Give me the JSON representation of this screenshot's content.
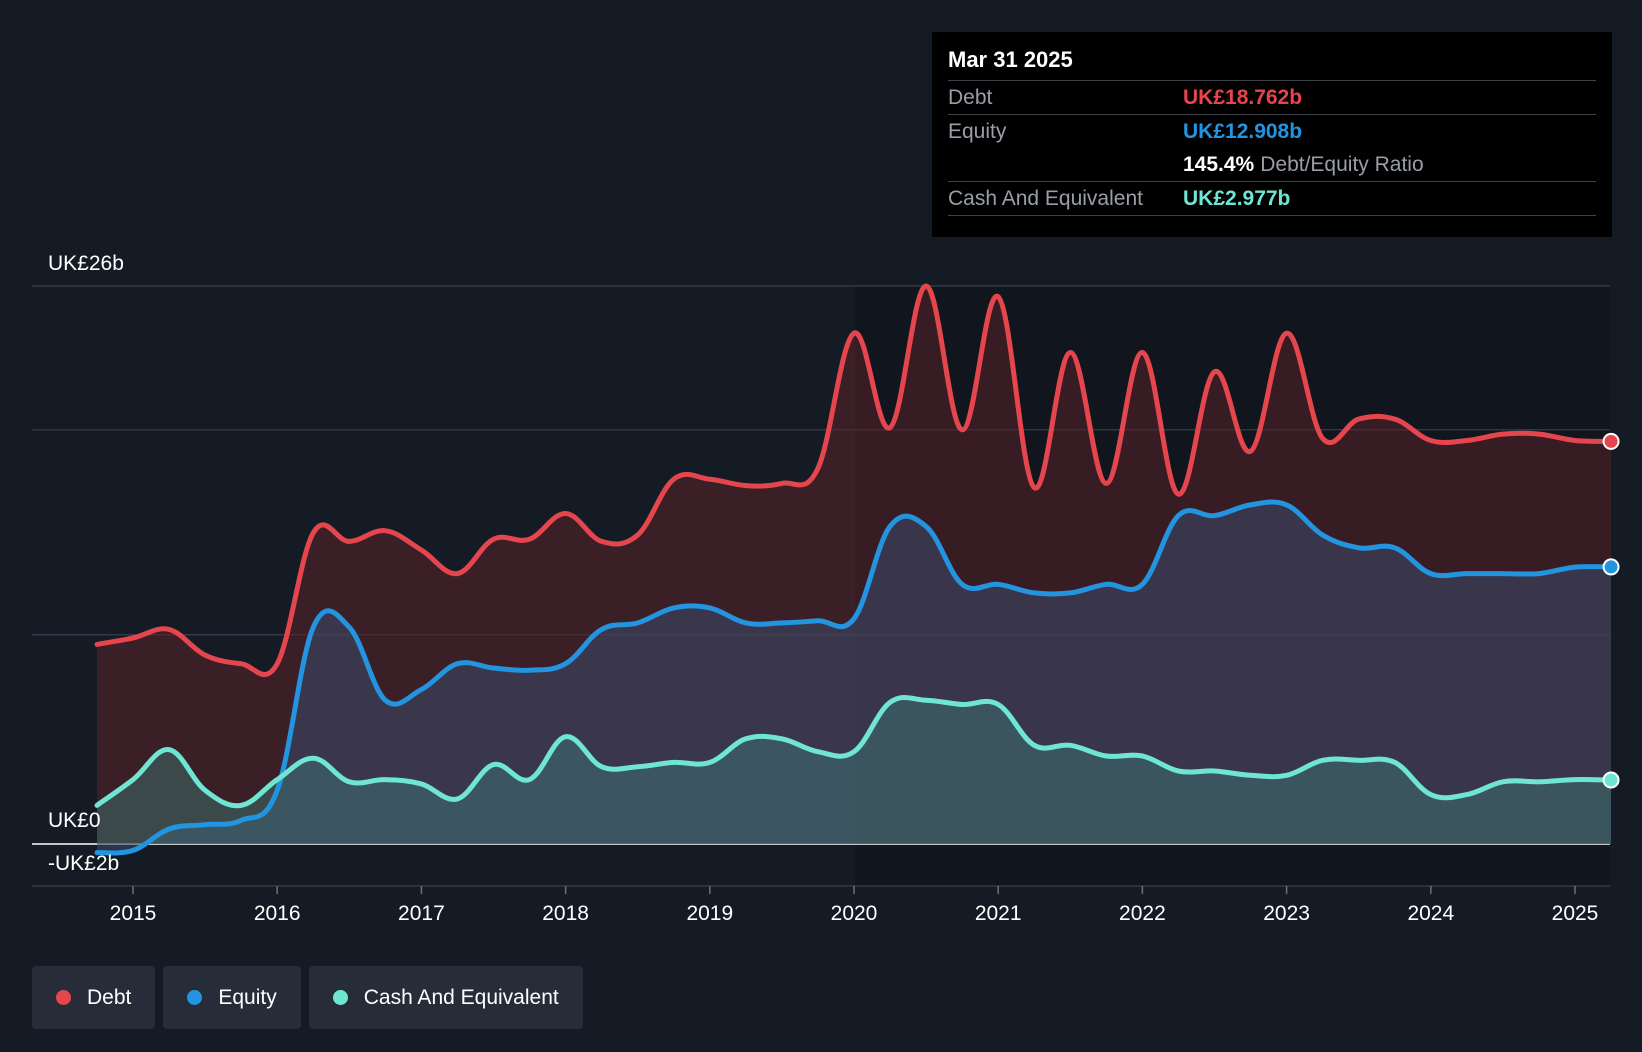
{
  "tooltip": {
    "date": "Mar 31 2025",
    "debt_label": "Debt",
    "debt_value": "UK£18.762b",
    "equity_label": "Equity",
    "equity_value": "UK£12.908b",
    "ratio_value": "145.4%",
    "ratio_label": "Debt/Equity Ratio",
    "cash_label": "Cash And Equivalent",
    "cash_value": "UK£2.977b"
  },
  "legend": [
    {
      "label": "Debt",
      "color": "#e5464d"
    },
    {
      "label": "Equity",
      "color": "#2394df"
    },
    {
      "label": "Cash And Equivalent",
      "color": "#6ee6d3"
    }
  ],
  "chart_data": {
    "type": "area",
    "title": "",
    "xlabel": "",
    "ylabel": "",
    "y_label_top": "UK£26b",
    "y_label_zero": "UK£0",
    "y_label_bottom": "-UK£2b",
    "ylim": [
      -2,
      26
    ],
    "xlim": [
      2014.74,
      2025.25
    ],
    "x_ticks": [
      "2015",
      "2016",
      "2017",
      "2018",
      "2019",
      "2020",
      "2021",
      "2022",
      "2023",
      "2024",
      "2025"
    ],
    "series": [
      {
        "name": "Debt",
        "color": "#e5464d",
        "points": [
          [
            2014.75,
            9.3
          ],
          [
            2015.0,
            9.6
          ],
          [
            2015.25,
            10.0
          ],
          [
            2015.5,
            8.8
          ],
          [
            2015.75,
            8.4
          ],
          [
            2016.0,
            8.4
          ],
          [
            2016.25,
            14.5
          ],
          [
            2016.5,
            14.1
          ],
          [
            2016.75,
            14.6
          ],
          [
            2017.0,
            13.7
          ],
          [
            2017.25,
            12.6
          ],
          [
            2017.5,
            14.2
          ],
          [
            2017.75,
            14.2
          ],
          [
            2018.0,
            15.4
          ],
          [
            2018.25,
            14.1
          ],
          [
            2018.5,
            14.4
          ],
          [
            2018.75,
            17.0
          ],
          [
            2019.0,
            17.0
          ],
          [
            2019.25,
            16.7
          ],
          [
            2019.5,
            16.8
          ],
          [
            2019.75,
            17.5
          ],
          [
            2020.0,
            23.8
          ],
          [
            2020.25,
            19.4
          ],
          [
            2020.5,
            26.0
          ],
          [
            2020.75,
            19.3
          ],
          [
            2021.0,
            25.5
          ],
          [
            2021.25,
            16.6
          ],
          [
            2021.5,
            22.9
          ],
          [
            2021.75,
            16.8
          ],
          [
            2022.0,
            22.9
          ],
          [
            2022.25,
            16.3
          ],
          [
            2022.5,
            22.0
          ],
          [
            2022.75,
            18.3
          ],
          [
            2023.0,
            23.8
          ],
          [
            2023.25,
            18.9
          ],
          [
            2023.5,
            19.8
          ],
          [
            2023.75,
            19.8
          ],
          [
            2024.0,
            18.8
          ],
          [
            2024.25,
            18.8
          ],
          [
            2024.5,
            19.1
          ],
          [
            2024.75,
            19.1
          ],
          [
            2025.0,
            18.8
          ],
          [
            2025.25,
            18.76
          ]
        ]
      },
      {
        "name": "Equity",
        "color": "#2394df",
        "points": [
          [
            2014.75,
            -0.4
          ],
          [
            2015.0,
            -0.3
          ],
          [
            2015.25,
            0.7
          ],
          [
            2015.5,
            0.9
          ],
          [
            2015.75,
            1.1
          ],
          [
            2016.0,
            2.5
          ],
          [
            2016.25,
            10.1
          ],
          [
            2016.5,
            10.1
          ],
          [
            2016.75,
            6.7
          ],
          [
            2017.0,
            7.2
          ],
          [
            2017.25,
            8.4
          ],
          [
            2017.5,
            8.2
          ],
          [
            2017.75,
            8.1
          ],
          [
            2018.0,
            8.4
          ],
          [
            2018.25,
            10.0
          ],
          [
            2018.5,
            10.3
          ],
          [
            2018.75,
            11.0
          ],
          [
            2019.0,
            11.0
          ],
          [
            2019.25,
            10.3
          ],
          [
            2019.5,
            10.3
          ],
          [
            2019.75,
            10.4
          ],
          [
            2020.0,
            10.5
          ],
          [
            2020.25,
            14.8
          ],
          [
            2020.5,
            14.8
          ],
          [
            2020.75,
            12.1
          ],
          [
            2021.0,
            12.1
          ],
          [
            2021.25,
            11.7
          ],
          [
            2021.5,
            11.7
          ],
          [
            2021.75,
            12.1
          ],
          [
            2022.0,
            12.1
          ],
          [
            2022.25,
            15.3
          ],
          [
            2022.5,
            15.3
          ],
          [
            2022.75,
            15.8
          ],
          [
            2023.0,
            15.8
          ],
          [
            2023.25,
            14.4
          ],
          [
            2023.5,
            13.8
          ],
          [
            2023.75,
            13.8
          ],
          [
            2024.0,
            12.6
          ],
          [
            2024.25,
            12.6
          ],
          [
            2024.5,
            12.6
          ],
          [
            2024.75,
            12.6
          ],
          [
            2025.0,
            12.9
          ],
          [
            2025.25,
            12.91
          ]
        ]
      },
      {
        "name": "Cash And Equivalent",
        "color": "#6ee6d3",
        "points": [
          [
            2014.75,
            1.8
          ],
          [
            2015.0,
            3.0
          ],
          [
            2015.25,
            4.4
          ],
          [
            2015.5,
            2.5
          ],
          [
            2015.75,
            1.8
          ],
          [
            2016.0,
            3.0
          ],
          [
            2016.25,
            4.0
          ],
          [
            2016.5,
            2.9
          ],
          [
            2016.75,
            3.0
          ],
          [
            2017.0,
            2.8
          ],
          [
            2017.25,
            2.1
          ],
          [
            2017.5,
            3.7
          ],
          [
            2017.75,
            3.0
          ],
          [
            2018.0,
            5.0
          ],
          [
            2018.25,
            3.6
          ],
          [
            2018.5,
            3.6
          ],
          [
            2018.75,
            3.8
          ],
          [
            2019.0,
            3.8
          ],
          [
            2019.25,
            4.9
          ],
          [
            2019.5,
            4.9
          ],
          [
            2019.75,
            4.3
          ],
          [
            2020.0,
            4.3
          ],
          [
            2020.25,
            6.6
          ],
          [
            2020.5,
            6.7
          ],
          [
            2020.75,
            6.5
          ],
          [
            2021.0,
            6.5
          ],
          [
            2021.25,
            4.6
          ],
          [
            2021.5,
            4.6
          ],
          [
            2021.75,
            4.1
          ],
          [
            2022.0,
            4.1
          ],
          [
            2022.25,
            3.4
          ],
          [
            2022.5,
            3.4
          ],
          [
            2022.75,
            3.2
          ],
          [
            2023.0,
            3.2
          ],
          [
            2023.25,
            3.9
          ],
          [
            2023.5,
            3.9
          ],
          [
            2023.75,
            3.8
          ],
          [
            2024.0,
            2.3
          ],
          [
            2024.25,
            2.3
          ],
          [
            2024.5,
            2.9
          ],
          [
            2024.75,
            2.9
          ],
          [
            2025.0,
            3.0
          ],
          [
            2025.25,
            2.98
          ]
        ]
      }
    ]
  }
}
